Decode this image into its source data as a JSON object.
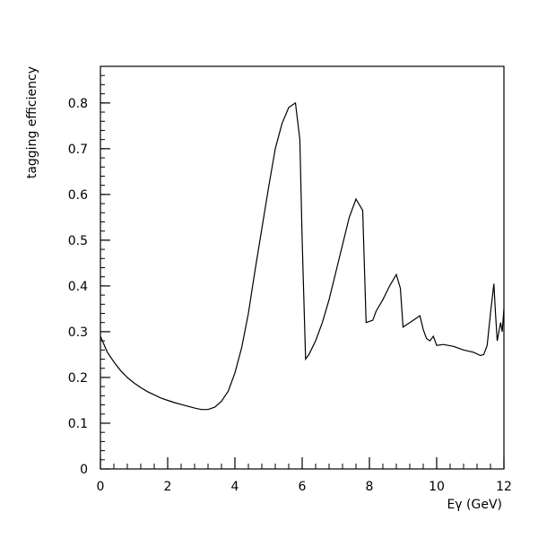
{
  "chart_data": {
    "type": "line",
    "title": "",
    "xlabel": "Eγ (GeV)",
    "ylabel": "tagging efficiency",
    "xlim": [
      0,
      12
    ],
    "ylim": [
      0,
      0.88
    ],
    "x_ticks": [
      0,
      2,
      4,
      6,
      8,
      10,
      12
    ],
    "y_ticks": [
      0,
      0.1,
      0.2,
      0.3,
      0.4,
      0.5,
      0.6,
      0.7,
      0.8
    ],
    "x_tick_labels": [
      "0",
      "2",
      "4",
      "6",
      "8",
      "10",
      "12"
    ],
    "y_tick_labels": [
      "0",
      "0.1",
      "0.2",
      "0.3",
      "0.4",
      "0.5",
      "0.6",
      "0.7",
      "0.8"
    ],
    "x_minor_step": 0.4,
    "y_minor_step": 0.02,
    "grid": false,
    "legend": "none",
    "line_color": "#000000",
    "series": [
      {
        "x": [
          0.0,
          0.2,
          0.4,
          0.6,
          0.8,
          1.0,
          1.2,
          1.4,
          1.6,
          1.8,
          2.0,
          2.2,
          2.4,
          2.6,
          2.8,
          3.0,
          3.2,
          3.4,
          3.6,
          3.8,
          4.0,
          4.2,
          4.4,
          4.6,
          4.8,
          5.0,
          5.2,
          5.4,
          5.6,
          5.8,
          5.93,
          6.0,
          6.1,
          6.2,
          6.4,
          6.6,
          6.8,
          7.0,
          7.2,
          7.4,
          7.6,
          7.8,
          7.9,
          8.1,
          8.2,
          8.4,
          8.6,
          8.8,
          8.92,
          9.0,
          9.1,
          9.3,
          9.5,
          9.6,
          9.7,
          9.8,
          9.9,
          10.0,
          10.2,
          10.5,
          10.8,
          11.1,
          11.3,
          11.4,
          11.5,
          11.6,
          11.7,
          11.75,
          11.8,
          11.9,
          11.95,
          12.0
        ],
        "y": [
          0.29,
          0.256,
          0.234,
          0.215,
          0.2,
          0.188,
          0.178,
          0.169,
          0.162,
          0.155,
          0.15,
          0.145,
          0.141,
          0.137,
          0.133,
          0.13,
          0.13,
          0.135,
          0.148,
          0.17,
          0.21,
          0.265,
          0.34,
          0.435,
          0.525,
          0.615,
          0.7,
          0.755,
          0.79,
          0.8,
          0.72,
          0.5,
          0.24,
          0.25,
          0.28,
          0.32,
          0.37,
          0.43,
          0.49,
          0.55,
          0.59,
          0.565,
          0.32,
          0.325,
          0.345,
          0.37,
          0.4,
          0.425,
          0.395,
          0.31,
          0.315,
          0.325,
          0.335,
          0.305,
          0.285,
          0.28,
          0.29,
          0.27,
          0.272,
          0.268,
          0.26,
          0.255,
          0.248,
          0.25,
          0.27,
          0.34,
          0.405,
          0.34,
          0.28,
          0.32,
          0.3,
          0.35
        ]
      }
    ]
  }
}
